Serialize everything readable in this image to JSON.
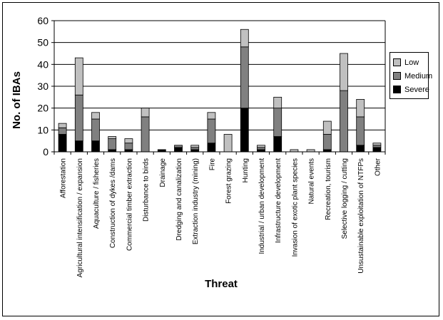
{
  "chart_data": {
    "type": "bar",
    "stacked": true,
    "categories": [
      "Afforestation",
      "Agricultural intensification / expansion",
      "Aquaculture / fisheries",
      "Construction of dykes /dams",
      "Commercial timber extraction",
      "Disturbance to birds",
      "Drainage",
      "Dredging and canalization",
      "Extraction industry (mining)",
      "Fire",
      "Forest grazing",
      "Hunting",
      "Industrial / urban development",
      "Infrastructure development",
      "Invasion of exotic plant species",
      "Natural events",
      "Recreation, tourism",
      "Selective logging / cutting",
      "Unsustainable exploitation of NTFPs",
      "Other"
    ],
    "series": [
      {
        "name": "Severe",
        "color": "#000000",
        "values": [
          8,
          5,
          5,
          1,
          1,
          0,
          1,
          2,
          1,
          4,
          0,
          20,
          1,
          7,
          0,
          0,
          1,
          0,
          3,
          2
        ]
      },
      {
        "name": "Medium",
        "color": "#808080",
        "values": [
          3,
          21,
          10,
          5,
          3,
          16,
          0,
          1,
          1,
          11,
          0,
          28,
          1,
          13,
          0,
          0,
          7,
          28,
          13,
          1
        ]
      },
      {
        "name": "Low",
        "color": "#c0c0c0",
        "values": [
          2,
          17,
          3,
          1,
          2,
          4,
          0,
          0,
          1,
          3,
          8,
          8,
          1,
          5,
          1,
          1,
          6,
          17,
          8,
          1
        ]
      }
    ],
    "legend_order": [
      "Low",
      "Medium",
      "Severe"
    ],
    "legend_position": "right",
    "xlabel": "Threat",
    "ylabel": "No. of IBAs",
    "ylim": [
      0,
      60
    ],
    "yticks": [
      "0",
      "10",
      "20",
      "30",
      "40",
      "50",
      "60"
    ],
    "grid": true,
    "plot_background": "#ffffff"
  }
}
